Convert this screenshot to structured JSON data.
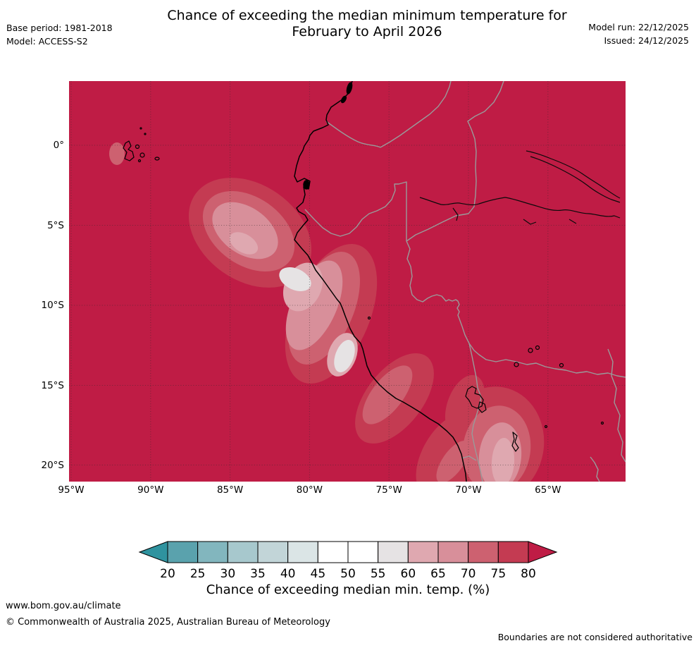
{
  "header": {
    "title_line1": "Chance of exceeding the median minimum temperature for",
    "title_line2": "February to April 2026",
    "base_period_label": "Base period: 1981-2018",
    "model_label": "Model: ACCESS-S2",
    "model_run_label": "Model run: 22/12/2025",
    "issued_label": "Issued: 24/12/2025"
  },
  "map": {
    "x_tick_labels": [
      "95°W",
      "90°W",
      "85°W",
      "80°W",
      "75°W",
      "70°W",
      "65°W"
    ],
    "y_tick_labels": [
      "0°",
      "5°S",
      "10°S",
      "15°S",
      "20°S"
    ],
    "coastline_color": "#000000",
    "border_color": "#9a9a9a"
  },
  "colorbar": {
    "tick_labels": [
      "20",
      "25",
      "30",
      "35",
      "40",
      "45",
      "50",
      "55",
      "60",
      "65",
      "70",
      "75",
      "80"
    ],
    "segment_colors": [
      "#5aa2ad",
      "#82b6be",
      "#a7c8cd",
      "#c2d5d8",
      "#dbe5e6",
      "#ffffff",
      "#ffffff",
      "#e6e3e4",
      "#dfa8b0",
      "#d88f9a",
      "#cd6170",
      "#c43b52"
    ],
    "below_min_color": "#2f939f",
    "above_max_color": "#bf1c45",
    "caption": "Chance of exceeding median min. temp. (%)"
  },
  "footer": {
    "url": "www.bom.gov.au/climate",
    "copyright": "© Commonwealth of Australia 2025, Australian Bureau of Meteorology",
    "disclaimer": "Boundaries are not considered authoritative"
  }
}
